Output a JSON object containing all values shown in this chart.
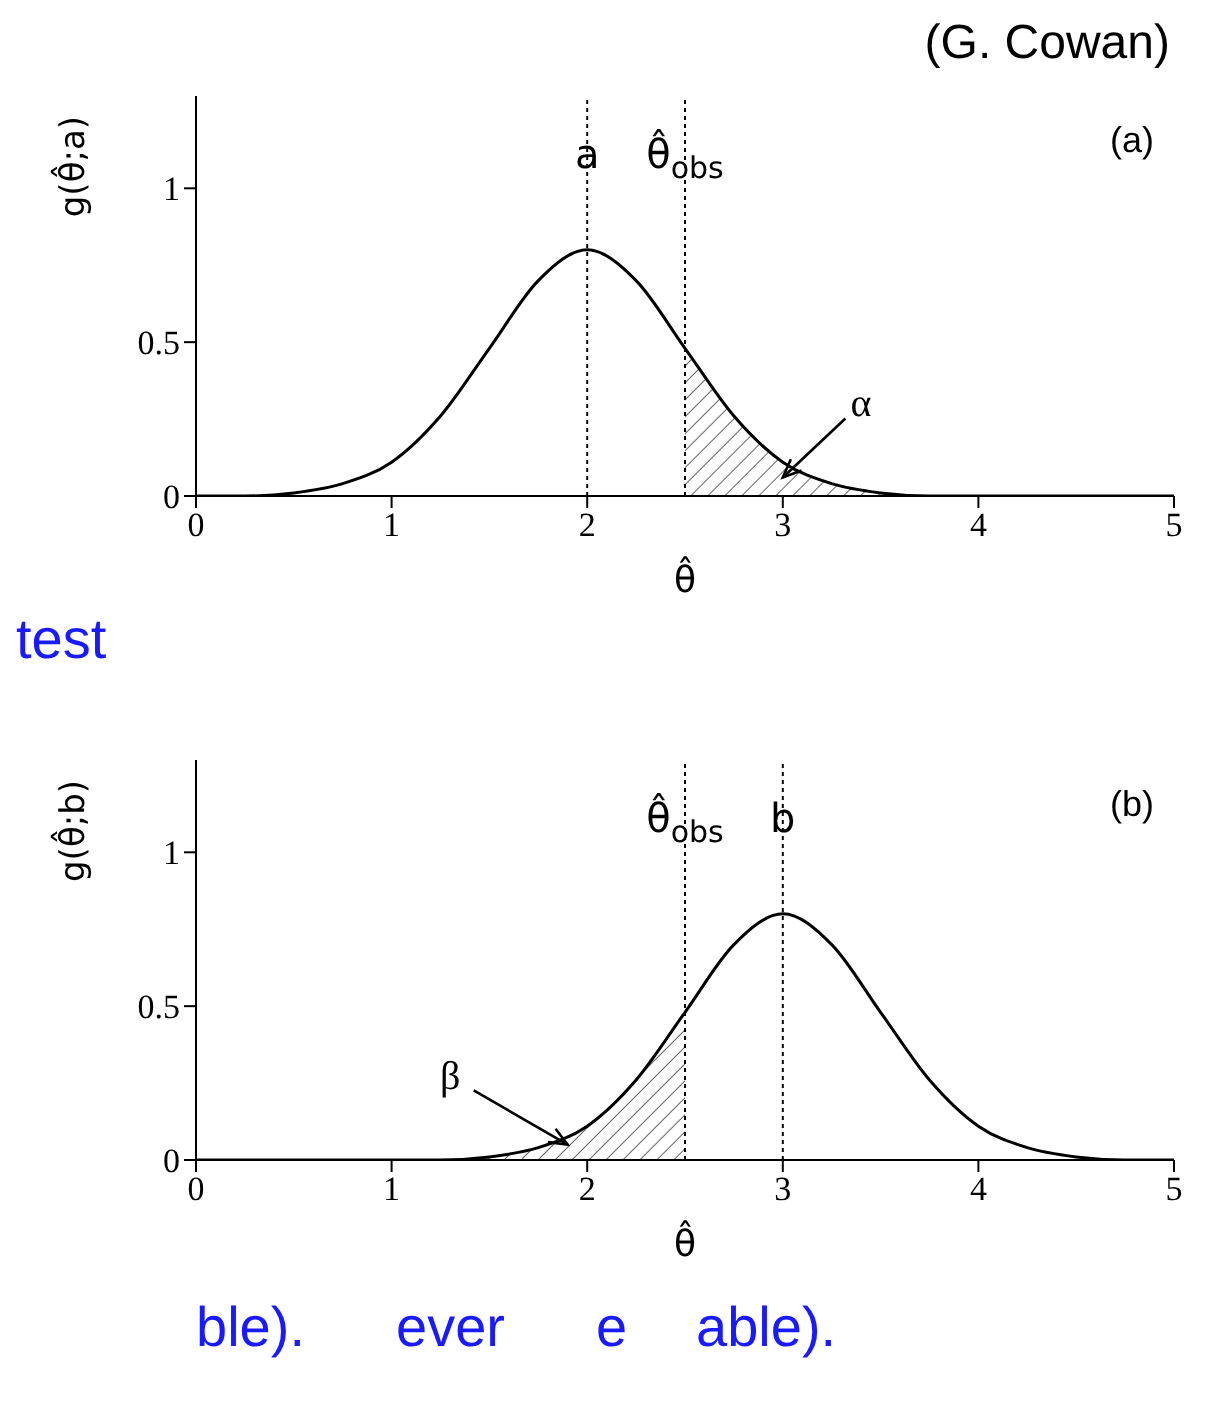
{
  "chart_data": [
    {
      "type": "line",
      "annotations": [
        "(G. Cowan)",
        "(a)",
        "test",
        "α"
      ],
      "xlabel": "θ̂",
      "ylabel": "g(θ̂;a)",
      "xlim": [
        0,
        5
      ],
      "xticks": [
        0,
        1,
        2,
        3,
        4,
        5
      ],
      "ylim": [
        0,
        1.3
      ],
      "yticks": [
        0,
        0.5,
        1
      ],
      "marker": "none",
      "series": [
        {
          "color": "#000000",
          "x": [
            0,
            0.25,
            0.5,
            0.75,
            1,
            1.25,
            1.5,
            1.75,
            2,
            2.25,
            2.5,
            2.75,
            3,
            3.25,
            3.5,
            3.75,
            4,
            4.5,
            5
          ],
          "values": [
            0,
            0,
            0.01,
            0.04,
            0.11,
            0.26,
            0.48,
            0.7,
            0.8,
            0.7,
            0.48,
            0.26,
            0.11,
            0.04,
            0.01,
            0,
            0,
            0,
            0
          ]
        },
        {
          "type": "area",
          "color": "#000000",
          "x": [
            2.5,
            2.75,
            3,
            3.25,
            3.5,
            3.75,
            4
          ],
          "values": [
            0.48,
            0.26,
            0.11,
            0.04,
            0.01,
            0,
            0
          ]
        }
      ],
      "ref_lines": [
        {
          "axis": "x",
          "value": 2,
          "label": "a",
          "line_style": "dotted"
        },
        {
          "axis": "x",
          "value": 2.5,
          "label": "θ̂$_{obs}$",
          "line_style": "dotted"
        }
      ]
    },
    {
      "type": "line",
      "annotations": [
        "(b)",
        "ble).",
        "ever",
        "e",
        "able).",
        {
          "text": "β",
          "x": 1.9,
          "y": 0.05
        }
      ],
      "xlabel": "θ̂",
      "ylabel": "g(θ̂;b)",
      "xlim": [
        0,
        5
      ],
      "xticks": [
        0,
        1,
        2,
        3,
        4,
        5
      ],
      "ylim": [
        0,
        1.3
      ],
      "yticks": [
        0,
        0.5,
        1
      ],
      "marker": "none",
      "series": [
        {
          "color": "#000000",
          "x": [
            0,
            0.5,
            1,
            1.25,
            1.5,
            1.75,
            2,
            2.25,
            2.5,
            2.75,
            3,
            3.25,
            3.5,
            3.75,
            4,
            4.25,
            4.5,
            4.75,
            5
          ],
          "values": [
            0,
            0,
            0,
            0,
            0.01,
            0.04,
            0.11,
            0.26,
            0.48,
            0.7,
            0.8,
            0.7,
            0.48,
            0.26,
            0.11,
            0.04,
            0.01,
            0,
            0
          ]
        },
        {
          "type": "area",
          "color": "#000000",
          "x": [
            1,
            1.25,
            1.5,
            1.75,
            2,
            2.25,
            2.5
          ],
          "values": [
            0,
            0,
            0.01,
            0.04,
            0.11,
            0.26,
            0.48
          ]
        }
      ],
      "ref_lines": [
        {
          "axis": "x",
          "value": 2.5,
          "label": "θ̂$_{obs}$",
          "line_style": "dotted"
        },
        {
          "axis": "x",
          "value": 3,
          "label": "b",
          "line_style": "dotted"
        }
      ]
    }
  ]
}
